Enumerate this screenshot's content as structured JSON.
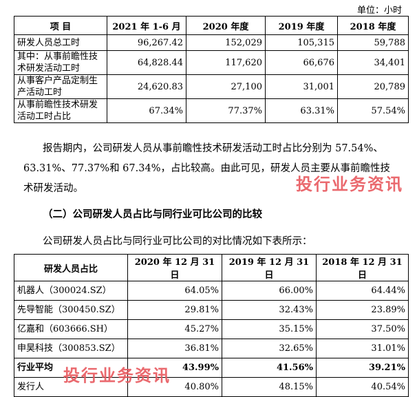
{
  "unit_label": "单位：小时",
  "table1": {
    "headers": [
      "项 目",
      "2021 年 1-6 月",
      "2020 年度",
      "2019 年度",
      "2018 年度"
    ],
    "rows": [
      {
        "label": "研发人员总工时",
        "values": [
          "96,267.42",
          "152,029",
          "105,315",
          "59,788"
        ]
      },
      {
        "label": "其中：从事前瞻性技术研发活动工时",
        "values": [
          "64,828.44",
          "117,620",
          "66,676",
          "34,401"
        ]
      },
      {
        "label": "从事客户产品定制生产活动工时",
        "values": [
          "24,620.83",
          "27,100",
          "31,001",
          "20,789"
        ]
      },
      {
        "label": "从事前瞻性技术研发活动工时占比",
        "values": [
          "67.34%",
          "77.37%",
          "63.31%",
          "57.54%"
        ]
      }
    ]
  },
  "paragraph1": {
    "line1": "报告期内，公司研发人员从事前瞻性技术研发活动工时占比分别为 57.54%、",
    "line2": "63.31%、77.37%和 67.34%，占比较高。由此可见，研发人员主要从事前瞻性技",
    "line3": "术研发活动。"
  },
  "heading": "（二）公司研发人员占比与同行业可比公司的比较",
  "paragraph2": "公司研发人员占比与同行业可比公司的对比情况如下表所示：",
  "table2": {
    "headers": [
      "研发人员占比",
      "2020 年 12 月 31 日",
      "2019 年 12 月 31 日",
      "2018 年 12 月 31 日"
    ],
    "rows": [
      {
        "label": "机器人（300024.SZ）",
        "values": [
          "64.05%",
          "66.00%",
          "64.44%"
        ]
      },
      {
        "label": "先导智能（300450.SZ）",
        "values": [
          "29.81%",
          "32.43%",
          "23.89%"
        ]
      },
      {
        "label": "亿嘉和（603666.SH）",
        "values": [
          "45.27%",
          "35.15%",
          "37.50%"
        ]
      },
      {
        "label": "申昊科技（300853.SZ）",
        "values": [
          "36.81%",
          "32.65%",
          "31.01%"
        ]
      },
      {
        "label": "行业平均",
        "values": [
          "43.99%",
          "41.56%",
          "39.21%"
        ]
      },
      {
        "label": "发行人",
        "values": [
          "40.80%",
          "48.15%",
          "40.54%"
        ]
      }
    ]
  },
  "watermark": "投行业务资讯"
}
